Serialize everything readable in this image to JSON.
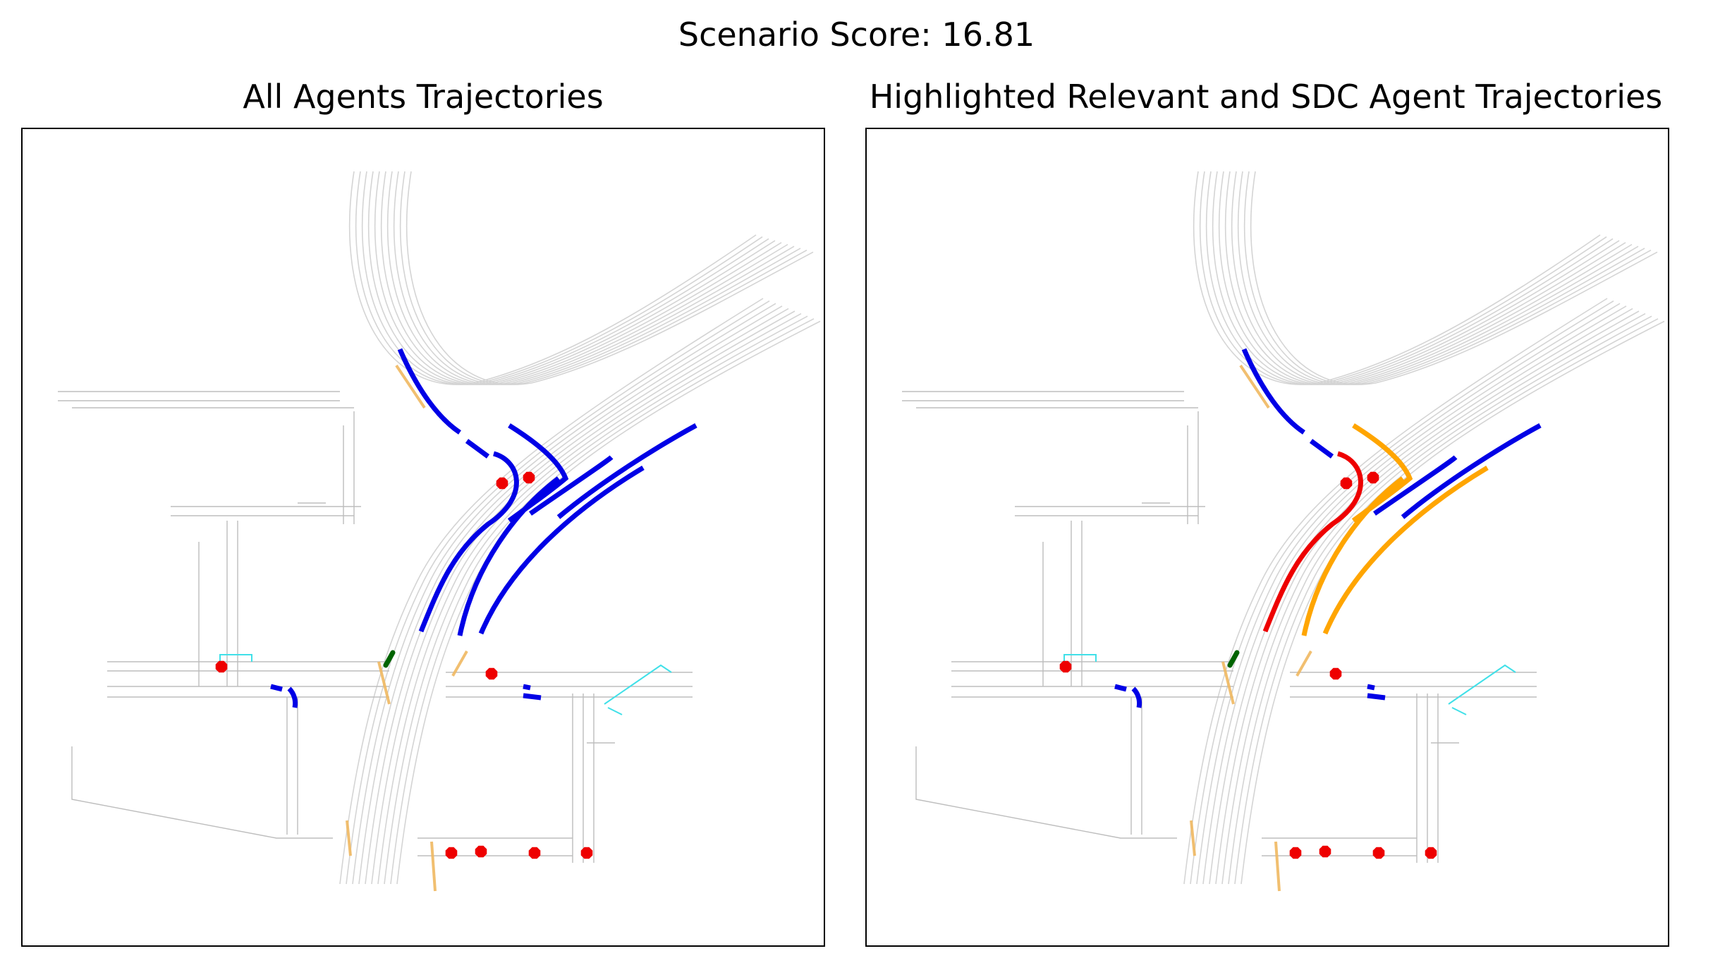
{
  "figure": {
    "suptitle": "Scenario Score: 16.81"
  },
  "panels": [
    {
      "id": "all",
      "title": "All Agents Trajectories"
    },
    {
      "id": "highlighted",
      "title": "Highlighted Relevant and SDC Agent Trajectories"
    }
  ],
  "colors": {
    "road_lines": "#d4d4d4",
    "road_edge": "#bdbdbd",
    "crosswalk": "#f0b860",
    "other_agents": "#0000e6",
    "relevant_agents": "#ffa500",
    "sdc_agent": "#ee0000",
    "parked_agent": "#006400",
    "stop_signs": "#ee0000",
    "cyan_marker": "#40e0e8"
  },
  "legend_semantics": {
    "blue": "other agents",
    "orange": "relevant agents",
    "red_line": "SDC agent",
    "red_octagon": "stop sign"
  }
}
